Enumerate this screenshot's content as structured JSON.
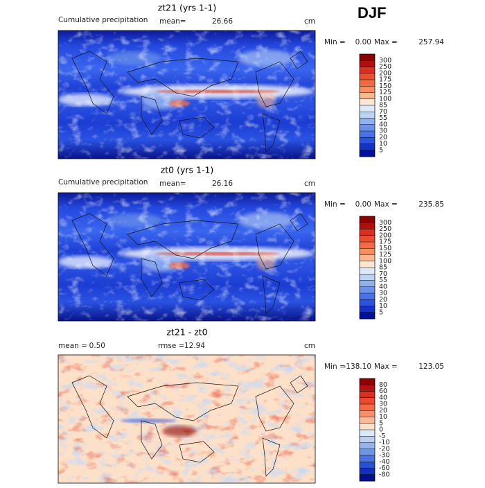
{
  "figure_title": "DJF",
  "panels": [
    {
      "title": "zt21 (yrs 1-1)",
      "variable": "Cumulative precipitation",
      "stats": [
        {
          "label": "mean=",
          "value": "26.66"
        }
      ],
      "units": "cm",
      "min_label": "Min =",
      "min": "0.00",
      "max_label": "Max =",
      "max": "257.94",
      "colorbar": {
        "levels": [
          300,
          250,
          200,
          175,
          150,
          125,
          100,
          85,
          70,
          55,
          40,
          30,
          20,
          10,
          5
        ],
        "colors": [
          "#8b0000",
          "#b30d0d",
          "#d7301f",
          "#e6502f",
          "#f26b45",
          "#f98d5f",
          "#fbb88f",
          "#fde6d2",
          "#dde9f8",
          "#bcd3f4",
          "#8fb2ee",
          "#6a92ea",
          "#4a72e6",
          "#2c52e0",
          "#1432c8",
          "#00109a"
        ]
      }
    },
    {
      "title": "zt0 (yrs 1-1)",
      "variable": "Cumulative precipitation",
      "stats": [
        {
          "label": "mean=",
          "value": "26.16"
        }
      ],
      "units": "cm",
      "min_label": "Min =",
      "min": "0.00",
      "max_label": "Max =",
      "max": "235.85",
      "colorbar": {
        "levels": [
          300,
          250,
          200,
          175,
          150,
          125,
          100,
          85,
          70,
          55,
          40,
          30,
          20,
          10,
          5
        ],
        "colors": [
          "#8b0000",
          "#b30d0d",
          "#d7301f",
          "#e6502f",
          "#f26b45",
          "#f98d5f",
          "#fbb88f",
          "#fde6d2",
          "#dde9f8",
          "#bcd3f4",
          "#8fb2ee",
          "#6a92ea",
          "#4a72e6",
          "#2c52e0",
          "#1432c8",
          "#00109a"
        ]
      }
    },
    {
      "title": "zt21 - zt0",
      "stats": [
        {
          "label": "mean =",
          "value": "0.50"
        },
        {
          "label": "rmse =",
          "value": "12.94"
        }
      ],
      "units": "cm",
      "min_label": "Min =",
      "min": "-138.10",
      "max_label": "Max =",
      "max": "123.05",
      "colorbar": {
        "levels": [
          80,
          60,
          40,
          30,
          20,
          10,
          5,
          0,
          -5,
          -10,
          -20,
          -30,
          -40,
          -60,
          -80
        ],
        "colors": [
          "#8b0000",
          "#b31212",
          "#d7301f",
          "#ea4a2a",
          "#f56a45",
          "#fa9068",
          "#fcb899",
          "#fde0c8",
          "#dde8f6",
          "#bcd0f0",
          "#96b4ea",
          "#6f94e4",
          "#4a72de",
          "#2a50d2",
          "#1530b8",
          "#00108a"
        ]
      }
    }
  ]
}
